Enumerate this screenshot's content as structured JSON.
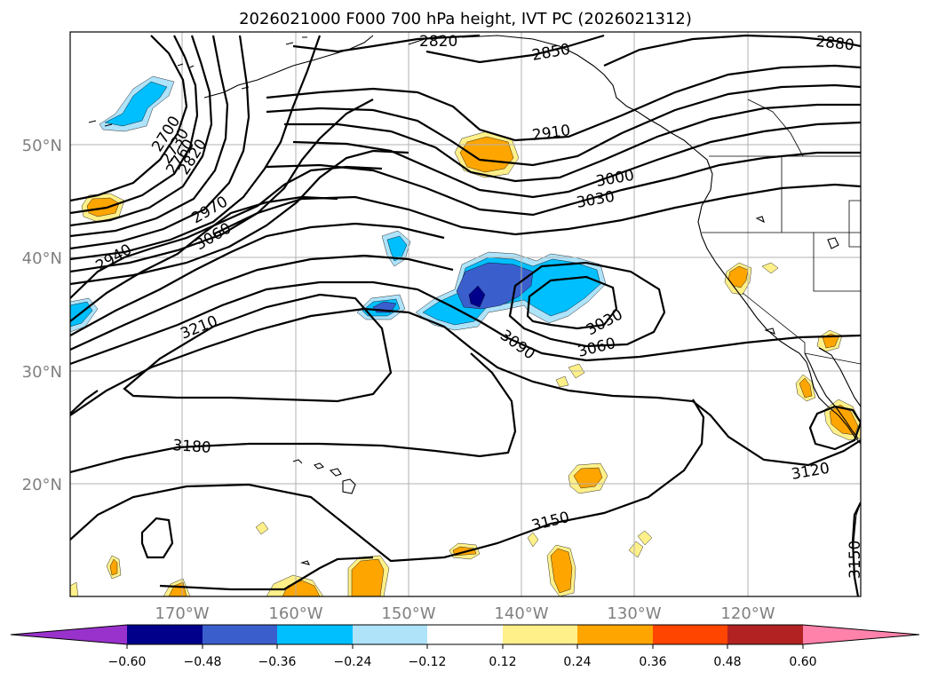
{
  "title": "2026021000 F000 700 hPa height, IVT PC (2026021312)",
  "map": {
    "lon_labels": [
      "170°W",
      "160°W",
      "150°W",
      "140°W",
      "130°W",
      "120°W"
    ],
    "lat_labels": [
      "50°N",
      "40°N",
      "30°N",
      "20°N"
    ],
    "contour_labels": [
      {
        "text": "2820"
      },
      {
        "text": "2850"
      },
      {
        "text": "2880"
      },
      {
        "text": "2910"
      },
      {
        "text": "3000"
      },
      {
        "text": "3030"
      },
      {
        "text": "2700"
      },
      {
        "text": "2730"
      },
      {
        "text": "2760"
      },
      {
        "text": "2820"
      },
      {
        "text": "2970"
      },
      {
        "text": "3060"
      },
      {
        "text": "2940"
      },
      {
        "text": "3210"
      },
      {
        "text": "3090"
      },
      {
        "text": "3030"
      },
      {
        "text": "3060"
      },
      {
        "text": "3180"
      },
      {
        "text": "3120"
      },
      {
        "text": "3150"
      },
      {
        "text": "3150"
      }
    ]
  },
  "colorbar": {
    "ticks": [
      "−0.60",
      "−0.48",
      "−0.36",
      "−0.24",
      "−0.12",
      "0.12",
      "0.24",
      "0.36",
      "0.48",
      "0.60"
    ],
    "colors": [
      "#9932cc",
      "#00008b",
      "#3a5fcd",
      "#00bfff",
      "#aee3fa",
      "#ffffff",
      "#fff08a",
      "#ffa500",
      "#ff4500",
      "#b22222",
      "#ff82ab"
    ],
    "pos_colors": {
      "c1": "#fff08a",
      "c2": "#ffa500"
    },
    "neg_colors": {
      "c1": "#aee3fa",
      "c2": "#00bfff",
      "c3": "#3a5fcd",
      "c4": "#00008b"
    }
  }
}
